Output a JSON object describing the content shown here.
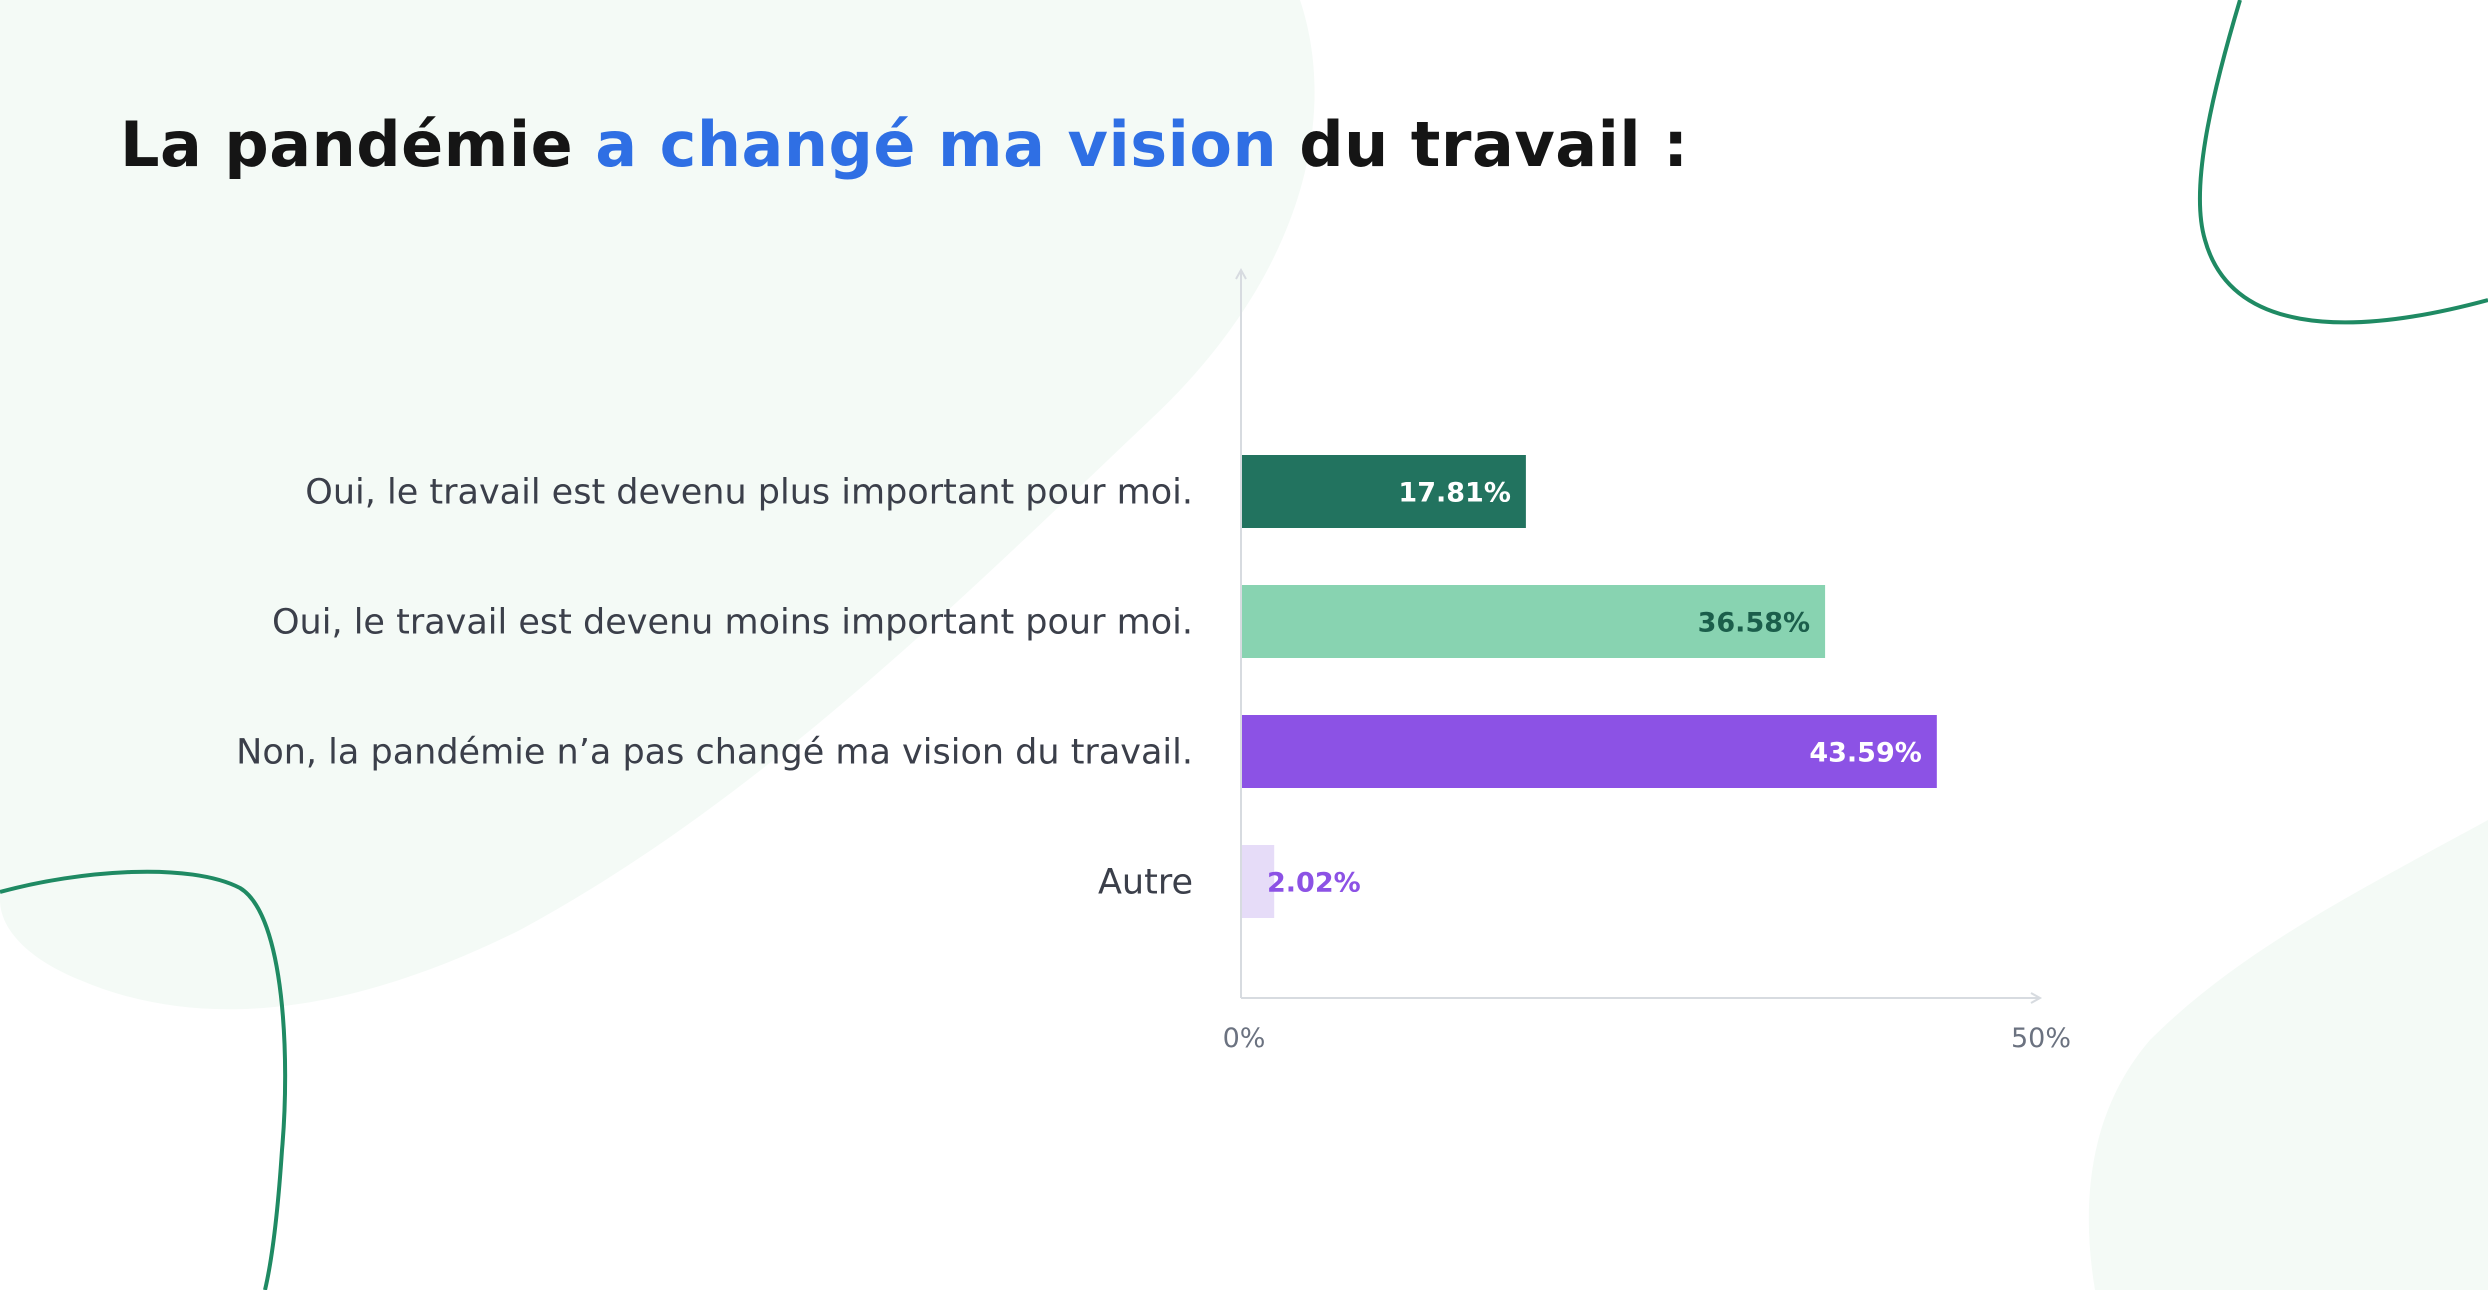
{
  "title": {
    "part1": "La pandémie ",
    "accent": "a changé ma vision",
    "part2": " du travail :"
  },
  "colors": {
    "accent_text": "#2f6fe4",
    "bar_1": "#22735f",
    "bar_2": "#88d3b1",
    "bar_3": "#8c52e5",
    "bar_4": "#e6dcf8",
    "decor_line": "#1f8a63",
    "decor_blob": "#f4faf6"
  },
  "chart_data": {
    "type": "bar",
    "orientation": "horizontal",
    "categories": [
      "Oui, le travail est devenu plus important pour moi.",
      "Oui, le travail est devenu moins important pour moi.",
      "Non, la pandémie n’a pas changé ma vision du travail.",
      "Autre"
    ],
    "values": [
      17.81,
      36.58,
      43.59,
      2.02
    ],
    "value_labels": [
      "17.81%",
      "36.58%",
      "43.59%",
      "2.02%"
    ],
    "bar_colors": [
      "#22735f",
      "#88d3b1",
      "#8c52e5",
      "#e6dcf8"
    ],
    "label_colors": [
      "#ffffff",
      "#1b5e4b",
      "#ffffff",
      "#8c52e5"
    ],
    "xlim": [
      0,
      50
    ],
    "ticks": [
      0,
      50
    ],
    "tick_labels": [
      "0%",
      "50%"
    ],
    "grid": false
  }
}
